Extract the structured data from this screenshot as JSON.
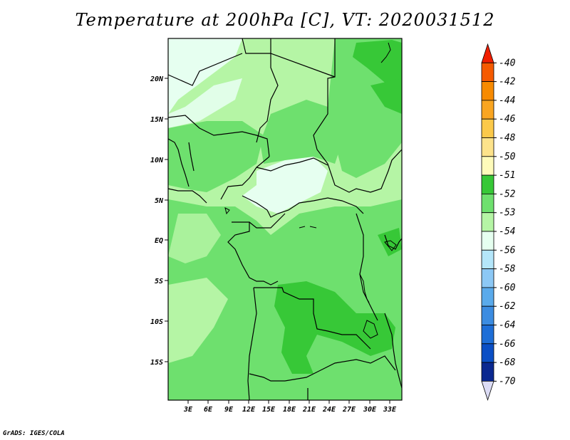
{
  "title": "Temperature at 200hPa [C], VT: 2020031512",
  "credit": "GrADS: IGES/COLA",
  "map": {
    "lat_labels": [
      "20N",
      "15N",
      "10N",
      "5N",
      "EQ",
      "5S",
      "10S",
      "15S"
    ],
    "lon_labels": [
      "3E",
      "6E",
      "9E",
      "12E",
      "15E",
      "18E",
      "21E",
      "24E",
      "27E",
      "30E",
      "33E"
    ]
  },
  "colorbar": {
    "labels": [
      "-40",
      "-42",
      "-44",
      "-46",
      "-48",
      "-50",
      "-51",
      "-52",
      "-53",
      "-54",
      "-56",
      "-58",
      "-60",
      "-62",
      "-64",
      "-66",
      "-68",
      "-70"
    ],
    "colors": [
      "#f01e00",
      "#f55a00",
      "#f78a00",
      "#f9a521",
      "#fbc94a",
      "#fde38b",
      "#fefbba",
      "#37c837",
      "#6ee06e",
      "#b5f5a5",
      "#e6fff0",
      "#b4e6fa",
      "#8cc8f5",
      "#5aaaeb",
      "#3c8ce1",
      "#1e6ed7",
      "#0b4fc5",
      "#0a2890",
      "#dcdcf5"
    ]
  }
}
